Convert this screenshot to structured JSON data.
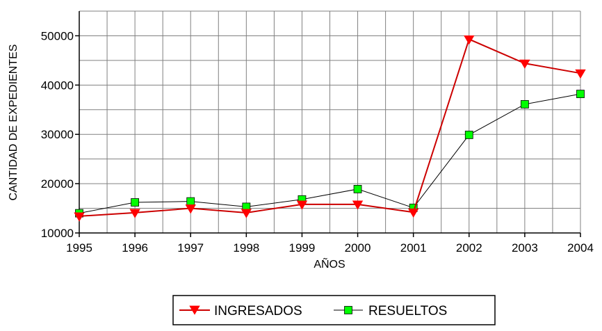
{
  "chart_data": {
    "type": "line",
    "title": "",
    "xlabel": "AÑOS",
    "ylabel": "CANTIDAD DE EXPEDIENTES",
    "x": [
      "1995",
      "1996",
      "1997",
      "1998",
      "1999",
      "2000",
      "2001",
      "2002",
      "2003",
      "2004"
    ],
    "ylim": [
      10000,
      55000
    ],
    "yticks": [
      "10000",
      "20000",
      "30000",
      "40000",
      "50000"
    ],
    "grid": true,
    "legend_position": "bottom",
    "series": [
      {
        "name": "INGRESADOS",
        "color": "#cc0000",
        "marker": "triangle-down",
        "marker_color": "#ff0000",
        "values": [
          13400,
          14100,
          15000,
          14100,
          15800,
          15800,
          14200,
          49300,
          44400,
          42400
        ]
      },
      {
        "name": "RESUELTOS",
        "color": "#000000",
        "marker": "square",
        "marker_color": "#00ff00",
        "values": [
          14000,
          16200,
          16400,
          15300,
          16800,
          18900,
          15100,
          29900,
          36100,
          38200
        ]
      }
    ]
  }
}
